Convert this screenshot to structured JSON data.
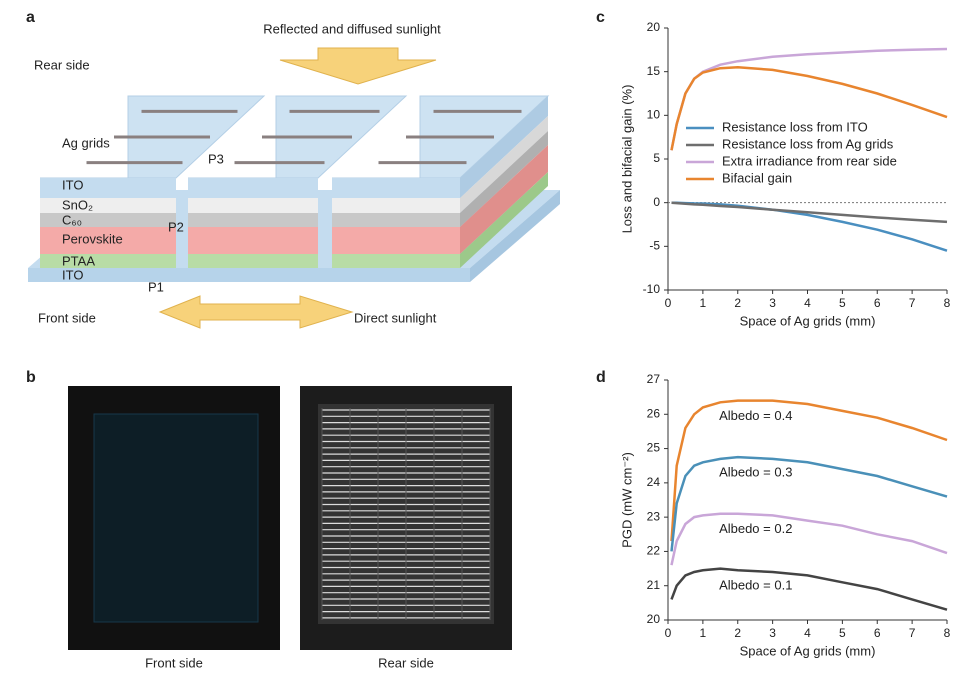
{
  "panel_a": {
    "label": "a",
    "top_light": "Reflected and diffused sunlight",
    "rear": "Rear side",
    "layers": [
      "Ag grids",
      "ITO",
      "SnO₂",
      "C₆₀",
      "Perovskite",
      "PTAA",
      "ITO"
    ],
    "scribes": [
      "P1",
      "P2",
      "P3"
    ],
    "front": "Front side",
    "bottom_light": "Direct sunlight"
  },
  "panel_b": {
    "label": "b",
    "captions": [
      "Front side",
      "Rear side"
    ]
  },
  "chart_data": [
    {
      "panel": "c",
      "type": "line",
      "xlabel": "Space of Ag grids (mm)",
      "ylabel": "Loss and bifacial gain (%)",
      "x": [
        0.1,
        0.25,
        0.5,
        0.75,
        1,
        1.5,
        2,
        3,
        4,
        5,
        6,
        7,
        8
      ],
      "xlim": [
        0,
        8
      ],
      "xticks": [
        0,
        1,
        2,
        3,
        4,
        5,
        6,
        7,
        8
      ],
      "ylim": [
        -10,
        20
      ],
      "yticks": [
        -10,
        -5,
        0,
        5,
        10,
        15,
        20
      ],
      "legend": "center right",
      "series": [
        {
          "name": "Resistance loss from ITO",
          "color": "#4a8fc0",
          "values": [
            0,
            0,
            -0.05,
            -0.08,
            -0.1,
            -0.2,
            -0.35,
            -0.8,
            -1.4,
            -2.2,
            -3.1,
            -4.2,
            -5.5
          ]
        },
        {
          "name": "Resistance loss from Ag grids",
          "color": "#6e6e6e",
          "values": [
            0,
            -0.05,
            -0.12,
            -0.2,
            -0.25,
            -0.38,
            -0.5,
            -0.8,
            -1.1,
            -1.4,
            -1.7,
            -1.95,
            -2.2
          ]
        },
        {
          "name": "Extra irradiance from rear side",
          "color": "#c9a6d8",
          "values": [
            6,
            9,
            12.5,
            14.2,
            15,
            15.8,
            16.2,
            16.7,
            17,
            17.2,
            17.4,
            17.5,
            17.6
          ]
        },
        {
          "name": "Bifacial gain",
          "color": "#e8852f",
          "values": [
            6,
            9,
            12.5,
            14.2,
            14.9,
            15.4,
            15.5,
            15.2,
            14.5,
            13.6,
            12.5,
            11.2,
            9.8
          ]
        }
      ]
    },
    {
      "panel": "d",
      "type": "line",
      "xlabel": "Space of Ag grids (mm)",
      "ylabel": "PGD (mW cm⁻²)",
      "x": [
        0.1,
        0.25,
        0.5,
        0.75,
        1,
        1.5,
        2,
        3,
        4,
        5,
        6,
        7,
        8
      ],
      "xlim": [
        0,
        8
      ],
      "xticks": [
        0,
        1,
        2,
        3,
        4,
        5,
        6,
        7,
        8
      ],
      "ylim": [
        20,
        27
      ],
      "yticks": [
        20,
        21,
        22,
        23,
        24,
        25,
        26,
        27
      ],
      "series": [
        {
          "name": "Albedo = 0.4",
          "color": "#e8852f",
          "values": [
            22.3,
            24.5,
            25.6,
            26.0,
            26.2,
            26.35,
            26.4,
            26.4,
            26.3,
            26.1,
            25.9,
            25.6,
            25.25
          ]
        },
        {
          "name": "Albedo = 0.3",
          "color": "#4a90b8",
          "values": [
            22.0,
            23.4,
            24.2,
            24.5,
            24.6,
            24.7,
            24.75,
            24.7,
            24.6,
            24.4,
            24.2,
            23.9,
            23.6
          ]
        },
        {
          "name": "Albedo = 0.2",
          "color": "#c9a6d8",
          "values": [
            21.6,
            22.3,
            22.8,
            23.0,
            23.05,
            23.1,
            23.1,
            23.05,
            22.9,
            22.75,
            22.5,
            22.3,
            21.95
          ]
        },
        {
          "name": "Albedo = 0.1",
          "color": "#444444",
          "values": [
            20.6,
            21.0,
            21.3,
            21.4,
            21.45,
            21.5,
            21.45,
            21.4,
            21.3,
            21.1,
            20.9,
            20.6,
            20.3
          ]
        }
      ]
    }
  ]
}
